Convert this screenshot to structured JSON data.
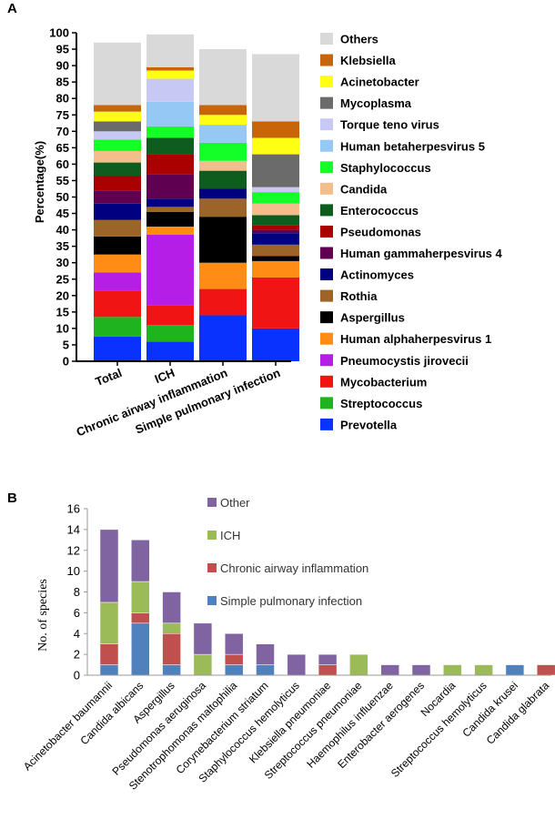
{
  "chart_data": [
    {
      "panel": "A",
      "type": "bar",
      "stacked": true,
      "ylabel": "Percentage(%)",
      "ylim": [
        0,
        100
      ],
      "ytick_step": 5,
      "categories": [
        "Total",
        "ICH",
        "Chronic airway inflammation",
        "Simple pulmonary infection"
      ],
      "series": [
        {
          "name": "Prevotella",
          "color": "#0a32ff",
          "values": [
            7.5,
            6,
            14,
            10
          ]
        },
        {
          "name": "Streptococcus",
          "color": "#1fb31f",
          "values": [
            6,
            5,
            0,
            0
          ]
        },
        {
          "name": "Mycobacterium",
          "color": "#f01414",
          "values": [
            8,
            6,
            8,
            15.5
          ]
        },
        {
          "name": "Pneumocystis jirovecii",
          "color": "#b41ee6",
          "values": [
            5.5,
            21.5,
            0,
            0
          ]
        },
        {
          "name": "Human alphaherpesvirus 1",
          "color": "#ff8c14",
          "values": [
            5.5,
            2.5,
            8,
            5
          ]
        },
        {
          "name": "Aspergillus",
          "color": "#000000",
          "values": [
            5.5,
            4.5,
            14,
            1.5
          ]
        },
        {
          "name": "Rothia",
          "color": "#9c6428",
          "values": [
            5,
            1.5,
            5.5,
            3.5
          ]
        },
        {
          "name": "Actinomyces",
          "color": "#000080",
          "values": [
            5,
            2.5,
            3,
            3.5
          ]
        },
        {
          "name": "Human gammaherpesvirus 4",
          "color": "#600050",
          "values": [
            4,
            7.5,
            0,
            1
          ]
        },
        {
          "name": "Pseudomonas",
          "color": "#aa0000",
          "values": [
            4.5,
            6,
            0,
            1.5
          ]
        },
        {
          "name": "Enterococcus",
          "color": "#0e5c1e",
          "values": [
            4,
            5,
            5.5,
            3
          ]
        },
        {
          "name": "Candida",
          "color": "#f4be8c",
          "values": [
            3.5,
            0,
            3,
            3.5
          ]
        },
        {
          "name": "Staphylococcus",
          "color": "#14ff28",
          "values": [
            3.5,
            3.5,
            5.5,
            3.5
          ]
        },
        {
          "name": "Human betaherpesvirus 5",
          "color": "#96c8f5",
          "values": [
            0,
            7.5,
            5.5,
            0
          ]
        },
        {
          "name": "Torque teno virus",
          "color": "#c8c8f5",
          "values": [
            2.5,
            7,
            0,
            1.5
          ]
        },
        {
          "name": "Mycoplasma",
          "color": "#6b6b6b",
          "values": [
            3,
            0,
            0,
            10
          ]
        },
        {
          "name": "Acinetobacter",
          "color": "#ffff14",
          "values": [
            3,
            2.5,
            3,
            5
          ]
        },
        {
          "name": "Klebsiella",
          "color": "#c8640a",
          "values": [
            2,
            1,
            3,
            5
          ]
        },
        {
          "name": "Others",
          "color": "#d9d9d9",
          "values": [
            19,
            10,
            17,
            20.5
          ]
        }
      ]
    },
    {
      "panel": "B",
      "type": "bar",
      "stacked": true,
      "ylabel": "No. of species",
      "ylim": [
        0,
        16
      ],
      "ytick_step": 2,
      "categories": [
        "Acinetobacter baumannii",
        "Candida albicans",
        "Aspergillus",
        "Pseudomonas aeruginosa",
        "Stenotrophomonas maltophilia",
        "Corynebacterium striatum",
        "Staphylococcus hemolyticus",
        "Klebsiella pneumoniae",
        "Streptococcus pneumoniae",
        "Haemophilus influenzae",
        "Enterobacter aerogenes",
        "Nocardia",
        "Streptococcus hemolyticus",
        "Candida krusei",
        "Candida glabrata"
      ],
      "series": [
        {
          "name": "Simple pulmonary infection",
          "color": "#4f81bd",
          "values": [
            1,
            5,
            1,
            0,
            1,
            1,
            0,
            0,
            0,
            0,
            0,
            0,
            0,
            1,
            0
          ]
        },
        {
          "name": "Chronic airway inflammation",
          "color": "#c0504d",
          "values": [
            2,
            1,
            3,
            0,
            1,
            0,
            0,
            1,
            0,
            0,
            0,
            0,
            0,
            0,
            1
          ]
        },
        {
          "name": "ICH",
          "color": "#9bbb59",
          "values": [
            4,
            3,
            1,
            2,
            0,
            0,
            0,
            0,
            2,
            0,
            0,
            1,
            1,
            0,
            0
          ]
        },
        {
          "name": "Other",
          "color": "#8064a2",
          "values": [
            7,
            4,
            3,
            3,
            2,
            2,
            2,
            1,
            0,
            1,
            1,
            0,
            0,
            0,
            0
          ]
        }
      ]
    }
  ]
}
